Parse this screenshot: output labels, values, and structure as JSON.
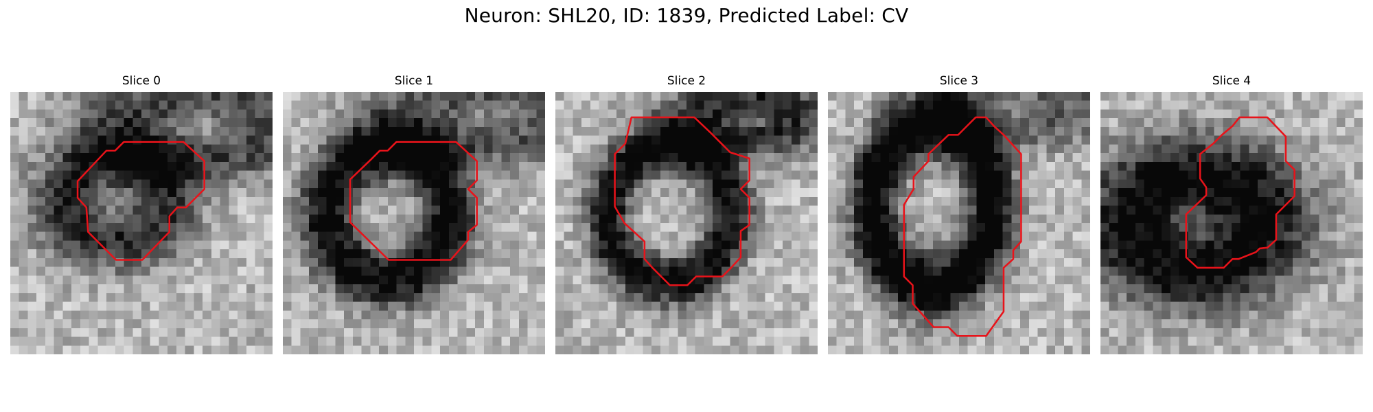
{
  "figure": {
    "title": "Neuron: SHL20, ID: 1839, Predicted Label: CV"
  },
  "panels": [
    {
      "title": "Slice 0"
    },
    {
      "title": "Slice 1"
    },
    {
      "title": "Slice 2"
    },
    {
      "title": "Slice 3"
    },
    {
      "title": "Slice 4"
    }
  ],
  "colors": {
    "roi_outline": "#e8131a",
    "colormap": "grayscale"
  }
}
